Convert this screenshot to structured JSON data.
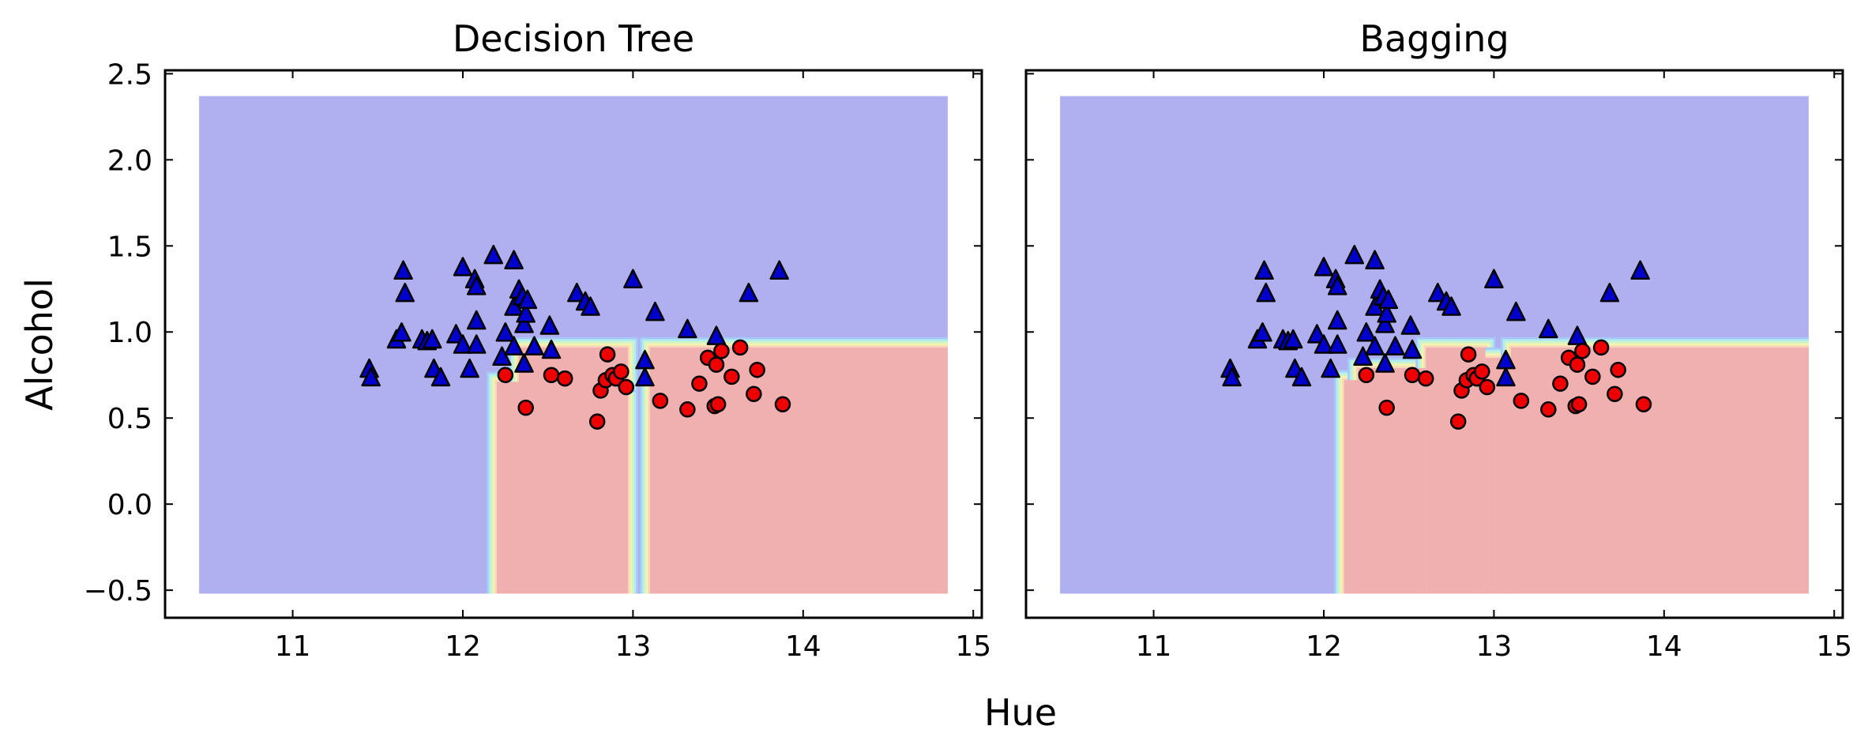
{
  "figure": {
    "xlabel": "Hue",
    "ylabel": "Alcohol"
  },
  "colors": {
    "class0_region": "#b0b0f0",
    "class1_region": "#f0b0b0",
    "class0_marker": "#0000cc",
    "class1_marker": "#ee0000",
    "boundary": [
      "#a8c8f8",
      "#b0ecf0",
      "#d0f4c8",
      "#f4f4b0",
      "#f8d8b8"
    ]
  },
  "chart_data": [
    {
      "type": "scatter",
      "title": "Decision Tree",
      "xlim": [
        10.25,
        15.05
      ],
      "ylim": [
        -0.66,
        2.52
      ],
      "xticks": [
        11,
        12,
        13,
        14,
        15
      ],
      "yticks": [
        -0.5,
        0.0,
        0.5,
        1.0,
        1.5,
        2.0,
        2.5
      ],
      "xtick_labels": [
        "11",
        "12",
        "13",
        "14",
        "15"
      ],
      "ytick_labels": [
        "−0.5",
        "0.0",
        "0.5",
        "1.0",
        "1.5",
        "2.0",
        "2.5"
      ],
      "decision_regions": {
        "extent": [
          10.45,
          14.85,
          -0.52,
          2.37
        ],
        "class1": [
          {
            "x": [
              12.2,
              12.97
            ],
            "y": [
              -0.52,
              0.71
            ]
          },
          {
            "x": [
              12.33,
              12.97
            ],
            "y": [
              0.71,
              0.91
            ]
          },
          {
            "x": [
              13.1,
              14.85
            ],
            "y": [
              -0.52,
              0.91
            ]
          }
        ]
      },
      "series": [
        {
          "marker": "triangle",
          "points": [
            [
              11.45,
              0.79
            ],
            [
              11.46,
              0.74
            ],
            [
              11.61,
              0.96
            ],
            [
              11.64,
              1.0
            ],
            [
              11.65,
              1.36
            ],
            [
              11.66,
              1.23
            ],
            [
              11.76,
              0.96
            ],
            [
              11.79,
              0.95
            ],
            [
              11.82,
              0.96
            ],
            [
              11.83,
              0.79
            ],
            [
              11.87,
              0.74
            ],
            [
              11.96,
              0.99
            ],
            [
              12.0,
              1.38
            ],
            [
              12.0,
              0.93
            ],
            [
              12.04,
              0.79
            ],
            [
              12.07,
              1.31
            ],
            [
              12.08,
              1.27
            ],
            [
              12.08,
              1.07
            ],
            [
              12.08,
              0.93
            ],
            [
              12.18,
              1.45
            ],
            [
              12.23,
              0.86
            ],
            [
              12.25,
              1.0
            ],
            [
              12.3,
              1.42
            ],
            [
              12.3,
              1.15
            ],
            [
              12.3,
              0.92
            ],
            [
              12.33,
              1.25
            ],
            [
              12.35,
              1.21
            ],
            [
              12.36,
              0.82
            ],
            [
              12.36,
              1.05
            ],
            [
              12.37,
              1.11
            ],
            [
              12.38,
              1.19
            ],
            [
              12.42,
              0.92
            ],
            [
              12.51,
              1.04
            ],
            [
              12.52,
              0.9
            ],
            [
              12.67,
              1.23
            ],
            [
              12.72,
              1.18
            ],
            [
              12.75,
              1.15
            ],
            [
              13.0,
              1.31
            ],
            [
              13.07,
              0.84
            ],
            [
              13.07,
              0.74
            ],
            [
              13.13,
              1.12
            ],
            [
              13.32,
              1.02
            ],
            [
              13.49,
              0.98
            ],
            [
              13.68,
              1.23
            ],
            [
              13.86,
              1.36
            ]
          ]
        },
        {
          "marker": "circle",
          "points": [
            [
              12.25,
              0.75
            ],
            [
              12.37,
              0.56
            ],
            [
              12.52,
              0.75
            ],
            [
              12.6,
              0.73
            ],
            [
              12.79,
              0.48
            ],
            [
              12.81,
              0.66
            ],
            [
              12.84,
              0.72
            ],
            [
              12.85,
              0.87
            ],
            [
              12.88,
              0.75
            ],
            [
              12.9,
              0.73
            ],
            [
              12.93,
              0.77
            ],
            [
              12.96,
              0.68
            ],
            [
              13.16,
              0.6
            ],
            [
              13.32,
              0.55
            ],
            [
              13.39,
              0.7
            ],
            [
              13.44,
              0.85
            ],
            [
              13.48,
              0.57
            ],
            [
              13.49,
              0.81
            ],
            [
              13.5,
              0.58
            ],
            [
              13.52,
              0.89
            ],
            [
              13.58,
              0.74
            ],
            [
              13.63,
              0.91
            ],
            [
              13.71,
              0.64
            ],
            [
              13.73,
              0.78
            ],
            [
              13.88,
              0.58
            ]
          ]
        }
      ]
    },
    {
      "type": "scatter",
      "title": "Bagging",
      "xlim": [
        10.25,
        15.05
      ],
      "ylim": [
        -0.66,
        2.52
      ],
      "xticks": [
        11,
        12,
        13,
        14,
        15
      ],
      "yticks": [
        -0.5,
        0.0,
        0.5,
        1.0,
        1.5,
        2.0,
        2.5
      ],
      "xtick_labels": [
        "11",
        "12",
        "13",
        "14",
        "15"
      ],
      "ytick_labels": [],
      "decision_regions": {
        "extent": [
          10.45,
          14.85,
          -0.52,
          2.37
        ],
        "class1": [
          {
            "x": [
              12.12,
              12.2
            ],
            "y": [
              -0.52,
              0.72
            ]
          },
          {
            "x": [
              12.2,
              12.6
            ],
            "y": [
              -0.52,
              0.79
            ]
          },
          {
            "x": [
              12.6,
              12.95
            ],
            "y": [
              -0.52,
              0.91
            ]
          },
          {
            "x": [
              12.95,
              13.1
            ],
            "y": [
              -0.52,
              0.85
            ]
          },
          {
            "x": [
              13.1,
              14.85
            ],
            "y": [
              -0.52,
              0.91
            ]
          }
        ]
      },
      "series": [
        {
          "marker": "triangle",
          "points": [
            [
              11.45,
              0.79
            ],
            [
              11.46,
              0.74
            ],
            [
              11.61,
              0.96
            ],
            [
              11.64,
              1.0
            ],
            [
              11.65,
              1.36
            ],
            [
              11.66,
              1.23
            ],
            [
              11.76,
              0.96
            ],
            [
              11.79,
              0.95
            ],
            [
              11.82,
              0.96
            ],
            [
              11.83,
              0.79
            ],
            [
              11.87,
              0.74
            ],
            [
              11.96,
              0.99
            ],
            [
              12.0,
              1.38
            ],
            [
              12.0,
              0.93
            ],
            [
              12.04,
              0.79
            ],
            [
              12.07,
              1.31
            ],
            [
              12.08,
              1.27
            ],
            [
              12.08,
              1.07
            ],
            [
              12.08,
              0.93
            ],
            [
              12.18,
              1.45
            ],
            [
              12.23,
              0.86
            ],
            [
              12.25,
              1.0
            ],
            [
              12.3,
              1.42
            ],
            [
              12.3,
              1.15
            ],
            [
              12.3,
              0.92
            ],
            [
              12.33,
              1.25
            ],
            [
              12.35,
              1.21
            ],
            [
              12.36,
              0.82
            ],
            [
              12.36,
              1.05
            ],
            [
              12.37,
              1.11
            ],
            [
              12.38,
              1.19
            ],
            [
              12.42,
              0.92
            ],
            [
              12.51,
              1.04
            ],
            [
              12.52,
              0.9
            ],
            [
              12.67,
              1.23
            ],
            [
              12.72,
              1.18
            ],
            [
              12.75,
              1.15
            ],
            [
              13.0,
              1.31
            ],
            [
              13.07,
              0.84
            ],
            [
              13.07,
              0.74
            ],
            [
              13.13,
              1.12
            ],
            [
              13.32,
              1.02
            ],
            [
              13.49,
              0.98
            ],
            [
              13.68,
              1.23
            ],
            [
              13.86,
              1.36
            ]
          ]
        },
        {
          "marker": "circle",
          "points": [
            [
              12.25,
              0.75
            ],
            [
              12.37,
              0.56
            ],
            [
              12.52,
              0.75
            ],
            [
              12.6,
              0.73
            ],
            [
              12.79,
              0.48
            ],
            [
              12.81,
              0.66
            ],
            [
              12.84,
              0.72
            ],
            [
              12.85,
              0.87
            ],
            [
              12.88,
              0.75
            ],
            [
              12.9,
              0.73
            ],
            [
              12.93,
              0.77
            ],
            [
              12.96,
              0.68
            ],
            [
              13.16,
              0.6
            ],
            [
              13.32,
              0.55
            ],
            [
              13.39,
              0.7
            ],
            [
              13.44,
              0.85
            ],
            [
              13.48,
              0.57
            ],
            [
              13.49,
              0.81
            ],
            [
              13.5,
              0.58
            ],
            [
              13.52,
              0.89
            ],
            [
              13.58,
              0.74
            ],
            [
              13.63,
              0.91
            ],
            [
              13.71,
              0.64
            ],
            [
              13.73,
              0.78
            ],
            [
              13.88,
              0.58
            ]
          ]
        }
      ]
    }
  ]
}
